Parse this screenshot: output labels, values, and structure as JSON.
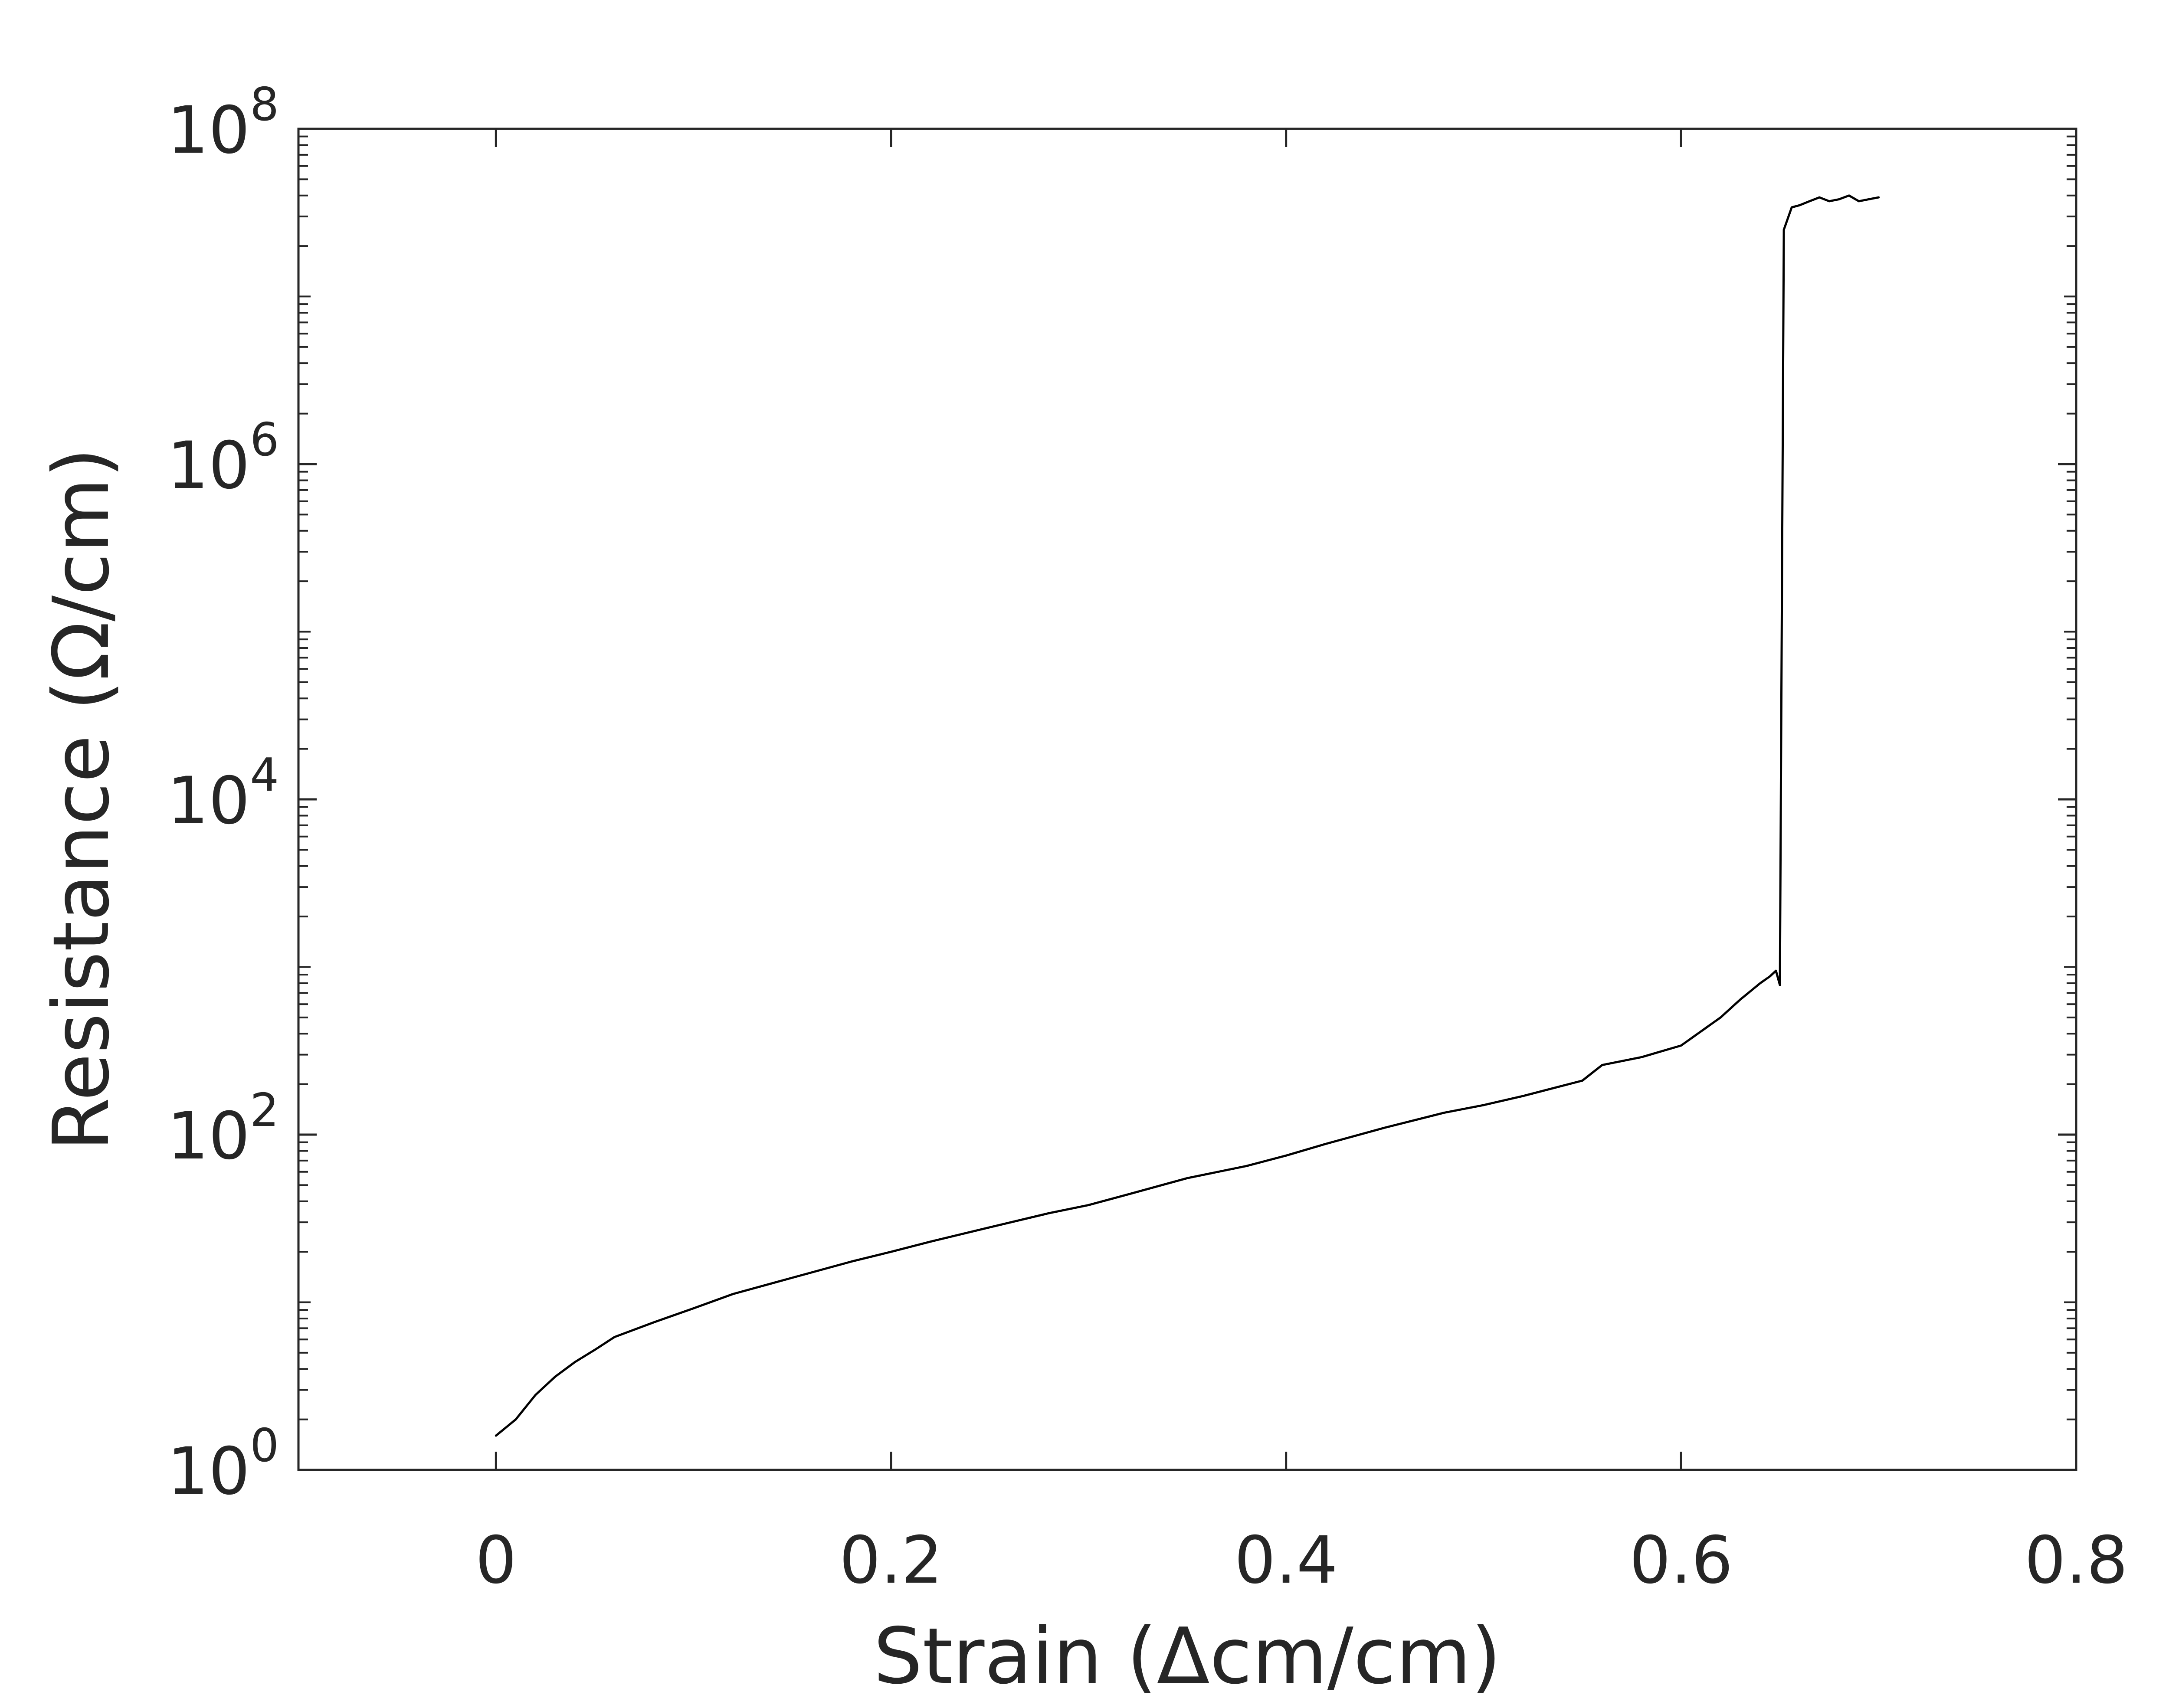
{
  "chart_data": {
    "type": "line",
    "title": "",
    "xlabel": "Strain (Δcm/cm)",
    "ylabel": "Resistance (Ω/cm)",
    "xlim": [
      -0.1,
      0.8
    ],
    "ylim": [
      1,
      100000000
    ],
    "y_scale": "log",
    "grid": false,
    "legend": "none",
    "x_ticks": [
      {
        "value": 0,
        "label": "0"
      },
      {
        "value": 0.2,
        "label": "0.2"
      },
      {
        "value": 0.4,
        "label": "0.4"
      },
      {
        "value": 0.6,
        "label": "0.6"
      },
      {
        "value": 0.8,
        "label": "0.8"
      }
    ],
    "y_ticks": [
      {
        "value": 1,
        "base": "10",
        "exp": "0"
      },
      {
        "value": 100,
        "base": "10",
        "exp": "2"
      },
      {
        "value": 10000,
        "base": "10",
        "exp": "4"
      },
      {
        "value": 1000000,
        "base": "10",
        "exp": "6"
      },
      {
        "value": 100000000,
        "base": "10",
        "exp": "8"
      }
    ],
    "series": [
      {
        "color": "#000000",
        "x": [
          0.0,
          0.01,
          0.02,
          0.03,
          0.04,
          0.05,
          0.06,
          0.08,
          0.1,
          0.12,
          0.15,
          0.18,
          0.2,
          0.22,
          0.25,
          0.28,
          0.3,
          0.32,
          0.35,
          0.38,
          0.4,
          0.42,
          0.45,
          0.48,
          0.5,
          0.52,
          0.55,
          0.56,
          0.58,
          0.6,
          0.62,
          0.63,
          0.64,
          0.645,
          0.648,
          0.65,
          0.652,
          0.656,
          0.66,
          0.665,
          0.67,
          0.675,
          0.68,
          0.685,
          0.69,
          0.695,
          0.7
        ],
        "y": [
          1.6,
          2.0,
          2.8,
          3.6,
          4.4,
          5.2,
          6.2,
          7.6,
          9.2,
          11.2,
          14.0,
          17.5,
          20.0,
          23.0,
          28.0,
          34.0,
          38.0,
          44.0,
          55.0,
          65.0,
          75.0,
          88.0,
          110.0,
          135.0,
          150.0,
          170.0,
          210.0,
          260.0,
          290.0,
          340.0,
          500.0,
          640.0,
          800.0,
          880.0,
          950.0,
          780.0,
          25000000,
          34000000,
          35000000,
          37000000,
          39000000,
          37000000,
          38000000,
          40000000,
          37000000,
          38000000,
          39000000
        ]
      }
    ]
  }
}
